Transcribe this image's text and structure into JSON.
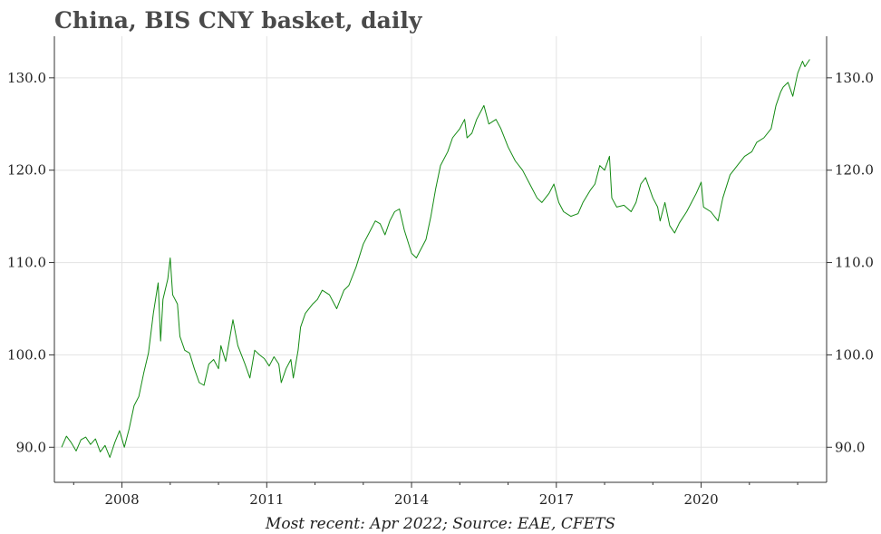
{
  "chart_data": {
    "type": "line",
    "title": "China, BIS CNY basket, daily",
    "footer": "Most recent: Apr 2022; Source: EAE, CFETS",
    "xlabel": "",
    "ylabel": "",
    "xlim": [
      2006.6,
      2022.6
    ],
    "ylim": [
      86.2,
      134.5
    ],
    "x_ticks": [
      2008,
      2011,
      2014,
      2017,
      2020
    ],
    "x_tick_labels": [
      "2008",
      "2011",
      "2014",
      "2017",
      "2020"
    ],
    "x_minor_ticks": [
      2007,
      2009,
      2010,
      2012,
      2013,
      2015,
      2016,
      2018,
      2019,
      2021,
      2022
    ],
    "y_ticks": [
      90,
      100,
      110,
      120,
      130
    ],
    "y_tick_labels": [
      "90.0",
      "100.0",
      "110.0",
      "120.0",
      "130.0"
    ],
    "y_axis_sides": "left and right",
    "grid": true,
    "line_color": "#138a13",
    "series": [
      {
        "x": [
          2006.75,
          2006.85,
          2006.95,
          2007.05,
          2007.15,
          2007.25,
          2007.35,
          2007.45,
          2007.55,
          2007.65,
          2007.75,
          2007.85,
          2007.95,
          2008.05,
          2008.15,
          2008.25,
          2008.35,
          2008.45,
          2008.55,
          2008.65,
          2008.75,
          2008.8,
          2008.85,
          2008.95,
          2009.0,
          2009.05,
          2009.15,
          2009.2,
          2009.3,
          2009.4,
          2009.5,
          2009.6,
          2009.7,
          2009.8,
          2009.9,
          2010.0,
          2010.05,
          2010.15,
          2010.3,
          2010.4,
          2010.55,
          2010.65,
          2010.75,
          2010.85,
          2010.95,
          2011.05,
          2011.15,
          2011.25,
          2011.3,
          2011.4,
          2011.5,
          2011.55,
          2011.65,
          2011.7,
          2011.8,
          2011.95,
          2012.05,
          2012.15,
          2012.3,
          2012.45,
          2012.6,
          2012.7,
          2012.85,
          2013.0,
          2013.15,
          2013.25,
          2013.35,
          2013.45,
          2013.55,
          2013.65,
          2013.75,
          2013.85,
          2014.0,
          2014.1,
          2014.15,
          2014.3,
          2014.4,
          2014.5,
          2014.6,
          2014.75,
          2014.85,
          2015.0,
          2015.1,
          2015.15,
          2015.25,
          2015.35,
          2015.5,
          2015.6,
          2015.75,
          2015.85,
          2016.0,
          2016.15,
          2016.3,
          2016.45,
          2016.6,
          2016.7,
          2016.85,
          2016.95,
          2017.05,
          2017.15,
          2017.3,
          2017.45,
          2017.55,
          2017.7,
          2017.8,
          2017.9,
          2018.0,
          2018.1,
          2018.15,
          2018.25,
          2018.4,
          2018.55,
          2018.65,
          2018.75,
          2018.85,
          2019.0,
          2019.1,
          2019.15,
          2019.25,
          2019.35,
          2019.45,
          2019.55,
          2019.7,
          2019.8,
          2019.9,
          2020.0,
          2020.05,
          2020.2,
          2020.35,
          2020.45,
          2020.6,
          2020.75,
          2020.9,
          2021.05,
          2021.15,
          2021.3,
          2021.45,
          2021.55,
          2021.65,
          2021.7,
          2021.8,
          2021.9,
          2022.0,
          2022.1,
          2022.15,
          2022.25
        ],
        "y": [
          90.0,
          91.2,
          90.5,
          89.6,
          90.8,
          91.1,
          90.3,
          90.9,
          89.5,
          90.2,
          88.9,
          90.5,
          91.8,
          90.0,
          92.0,
          94.5,
          95.5,
          98.0,
          100.2,
          104.5,
          107.8,
          101.5,
          106.0,
          108.2,
          110.5,
          106.5,
          105.5,
          102.0,
          100.5,
          100.2,
          98.5,
          97.0,
          96.7,
          99.0,
          99.5,
          98.5,
          101.0,
          99.3,
          103.8,
          101.0,
          99.0,
          97.5,
          100.5,
          100.0,
          99.6,
          98.8,
          99.8,
          99.0,
          97.0,
          98.5,
          99.5,
          97.5,
          100.5,
          103.0,
          104.5,
          105.5,
          106.0,
          107.0,
          106.5,
          105.0,
          107.0,
          107.5,
          109.5,
          112.0,
          113.5,
          114.5,
          114.2,
          113.0,
          114.5,
          115.5,
          115.8,
          113.5,
          111.0,
          110.5,
          111.0,
          112.5,
          115.0,
          118.0,
          120.5,
          122.0,
          123.5,
          124.5,
          125.5,
          123.5,
          124.0,
          125.5,
          127.0,
          125.0,
          125.5,
          124.5,
          122.5,
          121.0,
          120.0,
          118.5,
          117.0,
          116.5,
          117.5,
          118.5,
          116.5,
          115.5,
          115.0,
          115.3,
          116.5,
          117.8,
          118.5,
          120.5,
          120.0,
          121.5,
          117.0,
          116.0,
          116.2,
          115.5,
          116.5,
          118.5,
          119.2,
          117.0,
          116.0,
          114.5,
          116.5,
          114.0,
          113.2,
          114.3,
          115.5,
          116.5,
          117.5,
          118.7,
          116.0,
          115.5,
          114.5,
          117.0,
          119.5,
          120.5,
          121.5,
          122.0,
          123.0,
          123.5,
          124.5,
          127.0,
          128.5,
          129.0,
          129.5,
          128.0,
          130.5,
          131.8,
          131.2,
          132.0
        ]
      }
    ]
  }
}
